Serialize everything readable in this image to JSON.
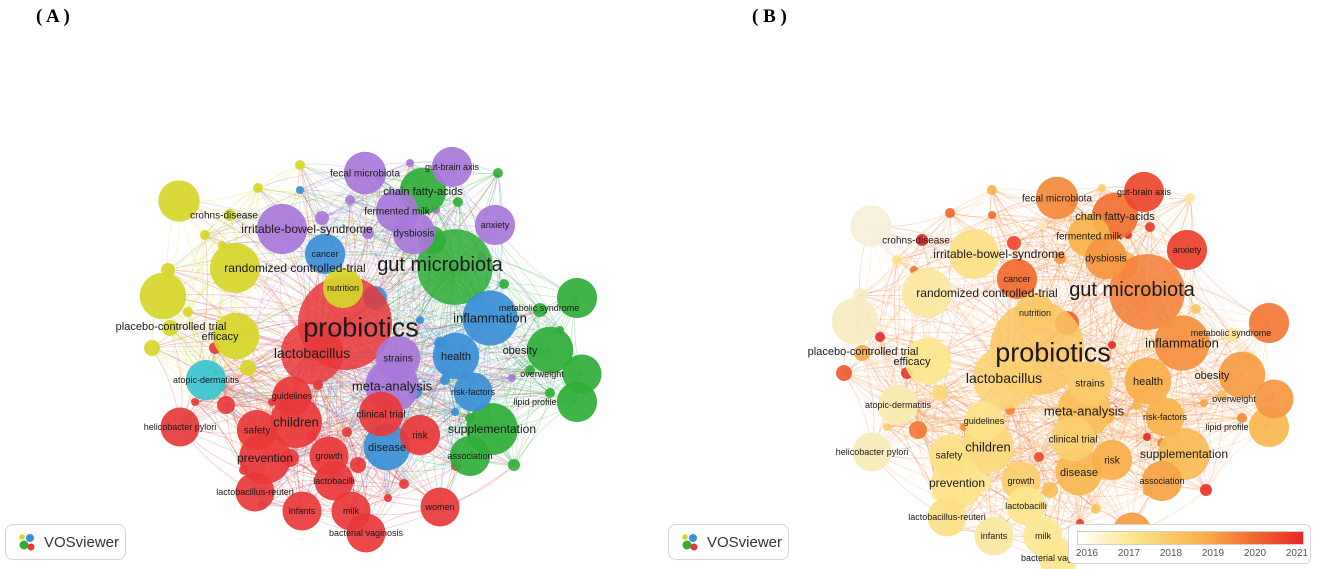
{
  "panels": {
    "a": "( A )",
    "b": "( B )"
  },
  "logo_text": "VOSviewer",
  "colors": {
    "red": "#e8383a",
    "green": "#2fae38",
    "blue": "#3b8fd6",
    "yellow": "#d6d62a",
    "purple": "#a877d9",
    "cyan": "#39c4d0"
  },
  "overlay_scale": {
    "ticks": [
      "2016",
      "2017",
      "2018",
      "2019",
      "2020",
      "2021"
    ],
    "min": 2016,
    "max": 2021
  },
  "keywords": [
    {
      "label": "probiotics",
      "cluster": "red",
      "weight": 100,
      "year": 2018.2
    },
    {
      "label": "gut microbiota",
      "cluster": "green",
      "weight": 62,
      "year": 2019.6
    },
    {
      "label": "lactobacillus",
      "cluster": "red",
      "weight": 40,
      "year": 2017.8
    },
    {
      "label": "inflammation",
      "cluster": "blue",
      "weight": 30,
      "year": 2019.3
    },
    {
      "label": "meta-analysis",
      "cluster": "purple",
      "weight": 28,
      "year": 2018.4
    },
    {
      "label": "children",
      "cluster": "red",
      "weight": 26,
      "year": 2017.6
    },
    {
      "label": "supplementation",
      "cluster": "green",
      "weight": 26,
      "year": 2018.5
    },
    {
      "label": "prevention",
      "cluster": "red",
      "weight": 26,
      "year": 2017.3
    },
    {
      "label": "irritable-bowel-syndrome",
      "cluster": "purple",
      "weight": 24,
      "year": 2017.4
    },
    {
      "label": "randomized controlled-trial",
      "cluster": "yellow",
      "weight": 24,
      "year": 2017.0
    },
    {
      "label": "placebo-controlled trial",
      "cluster": "yellow",
      "weight": 20,
      "year": 2016.6
    },
    {
      "label": "efficacy",
      "cluster": "yellow",
      "weight": 20,
      "year": 2017.2
    },
    {
      "label": "health",
      "cluster": "blue",
      "weight": 20,
      "year": 2018.8
    },
    {
      "label": "obesity",
      "cluster": "green",
      "weight": 20,
      "year": 2019.1
    },
    {
      "label": "disease",
      "cluster": "blue",
      "weight": 20,
      "year": 2018.6
    },
    {
      "label": "chain fatty-acids",
      "cluster": "green",
      "weight": 20,
      "year": 2019.8
    },
    {
      "label": "strains",
      "cluster": "purple",
      "weight": 18,
      "year": 2018.0
    },
    {
      "label": "clinical trial",
      "cluster": "red",
      "weight": 18,
      "year": 2017.9
    },
    {
      "label": "fecal microbiota",
      "cluster": "purple",
      "weight": 16,
      "year": 2019.4
    },
    {
      "label": "fermented milk",
      "cluster": "purple",
      "weight": 16,
      "year": 2018.7
    },
    {
      "label": "dysbiosis",
      "cluster": "purple",
      "weight": 16,
      "year": 2019.2
    },
    {
      "label": "crohns-disease",
      "cluster": "yellow",
      "weight": 15,
      "year": 2016.3
    },
    {
      "label": "gut-brain axis",
      "cluster": "purple",
      "weight": 14,
      "year": 2020.5
    },
    {
      "label": "anxiety",
      "cluster": "purple",
      "weight": 14,
      "year": 2020.6
    },
    {
      "label": "metabolic syndrome",
      "cluster": "green",
      "weight": 14,
      "year": 2019.7
    },
    {
      "label": "overweight",
      "cluster": "green",
      "weight": 13,
      "year": 2019.2
    },
    {
      "label": "lipid profile",
      "cluster": "green",
      "weight": 14,
      "year": 2018.6
    },
    {
      "label": "cancer",
      "cluster": "blue",
      "weight": 14,
      "year": 2019.9
    },
    {
      "label": "nutrition",
      "cluster": "yellow",
      "weight": 14,
      "year": 2018.1
    },
    {
      "label": "atopic-dermatitis",
      "cluster": "cyan",
      "weight": 14,
      "year": 2016.8
    },
    {
      "label": "guidelines",
      "cluster": "red",
      "weight": 13,
      "year": 2017.3
    },
    {
      "label": "risk-factors",
      "cluster": "blue",
      "weight": 13,
      "year": 2018.7
    },
    {
      "label": "helicobacter pylori",
      "cluster": "red",
      "weight": 13,
      "year": 2016.7
    },
    {
      "label": "safety",
      "cluster": "red",
      "weight": 14,
      "year": 2017.4
    },
    {
      "label": "risk",
      "cluster": "red",
      "weight": 14,
      "year": 2018.8
    },
    {
      "label": "growth",
      "cluster": "red",
      "weight": 13,
      "year": 2017.9
    },
    {
      "label": "association",
      "cluster": "green",
      "weight": 14,
      "year": 2019.0
    },
    {
      "label": "lactobacilli",
      "cluster": "red",
      "weight": 13,
      "year": 2017.2
    },
    {
      "label": "lactobacillus-reuteri",
      "cluster": "red",
      "weight": 13,
      "year": 2017.4
    },
    {
      "label": "infants",
      "cluster": "red",
      "weight": 13,
      "year": 2017.0
    },
    {
      "label": "milk",
      "cluster": "red",
      "weight": 13,
      "year": 2017.1
    },
    {
      "label": "women",
      "cluster": "red",
      "weight": 13,
      "year": 2019.1
    },
    {
      "label": "bacterial vaginosis",
      "cluster": "red",
      "weight": 13,
      "year": 2017.2
    }
  ]
}
